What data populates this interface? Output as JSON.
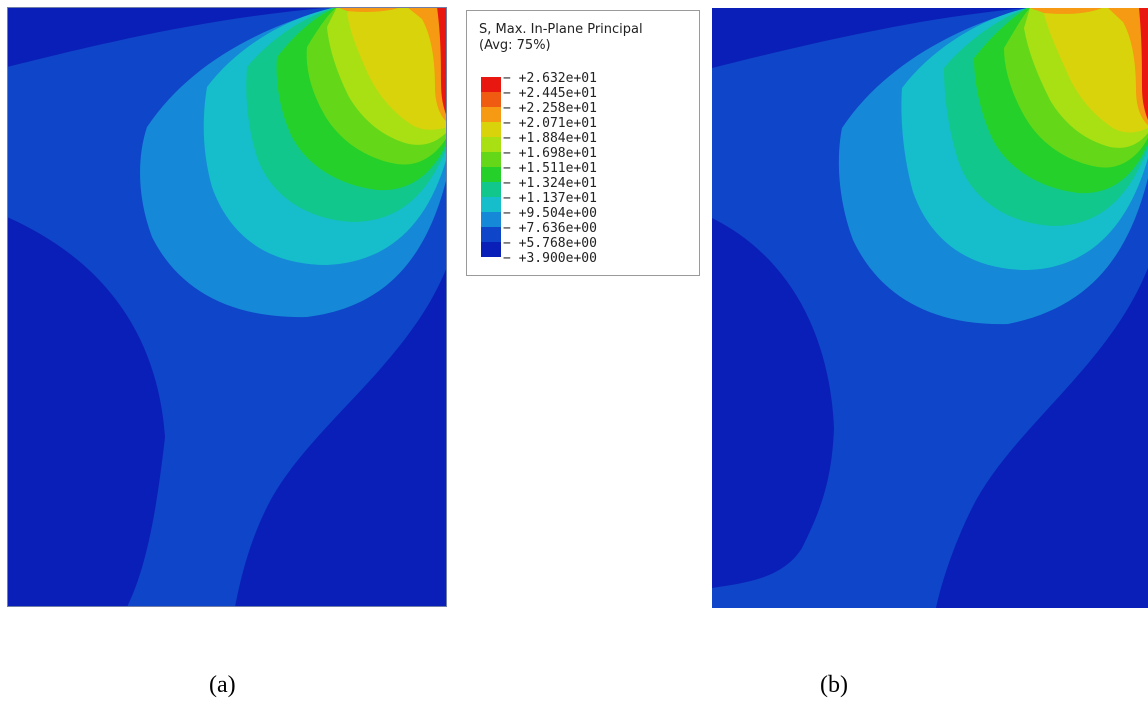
{
  "legend": {
    "title": "S, Max. In-Plane Principal",
    "subtitle": "(Avg: 75%)",
    "ticks": [
      "+2.632e+01",
      "+2.445e+01",
      "+2.258e+01",
      "+2.071e+01",
      "+1.884e+01",
      "+1.698e+01",
      "+1.511e+01",
      "+1.324e+01",
      "+1.137e+01",
      "+9.504e+00",
      "+7.636e+00",
      "+5.768e+00",
      "+3.900e+00"
    ],
    "colors": [
      "#e8170f",
      "#ef5b10",
      "#f59a12",
      "#d9d30b",
      "#a8e014",
      "#64d818",
      "#25d02a",
      "#12c78c",
      "#16bdcb",
      "#1688d8",
      "#0f45c8",
      "#0a1fb8"
    ]
  },
  "captions": {
    "a": "(a)",
    "b": "(b)"
  }
}
